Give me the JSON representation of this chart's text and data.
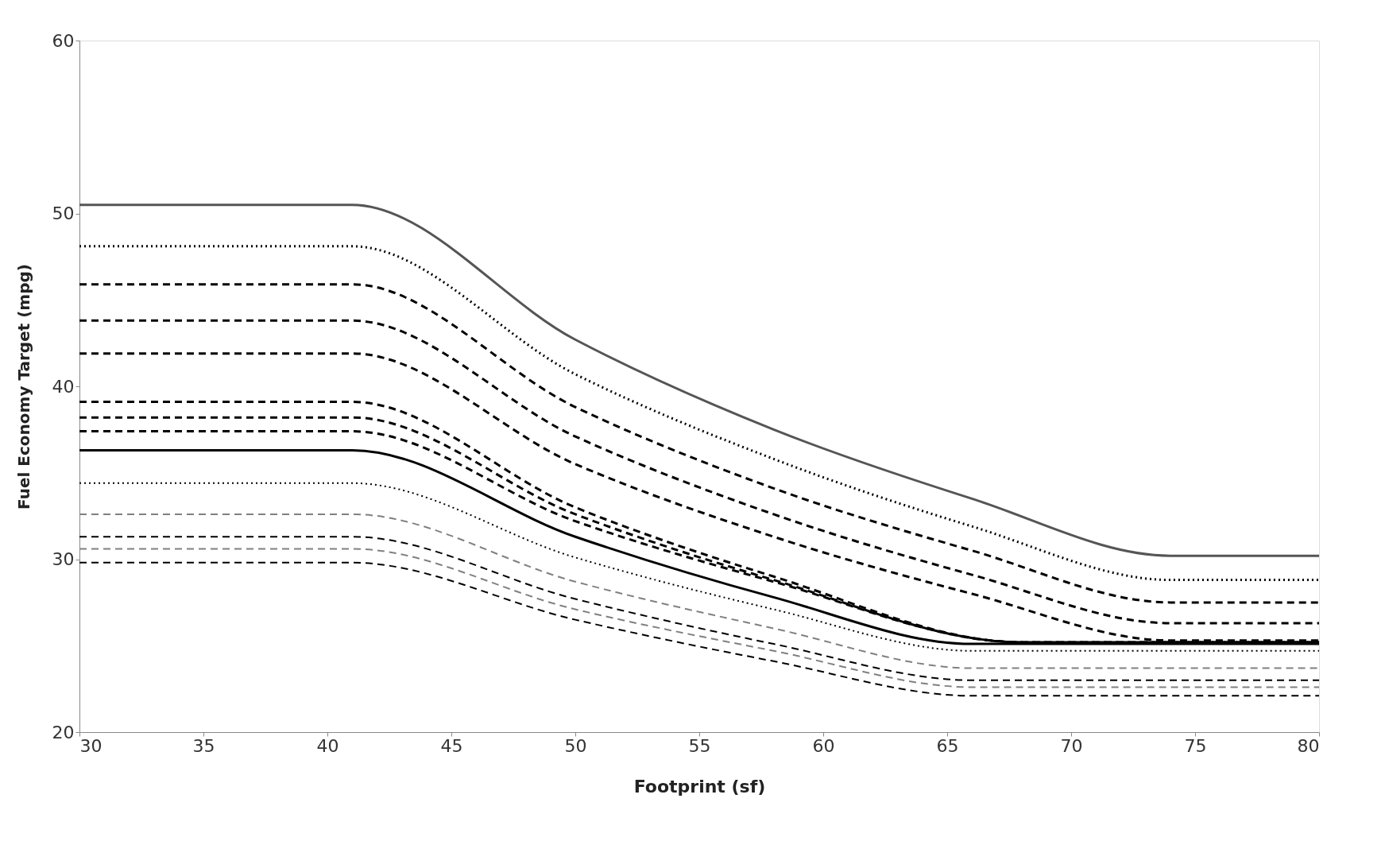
{
  "chart_data": {
    "type": "line",
    "xlabel": "Footprint (sf)",
    "ylabel": "Fuel Economy Target (mpg)",
    "xlim": [
      30,
      80
    ],
    "xticks": [
      30,
      35,
      40,
      45,
      50,
      55,
      60,
      65,
      70,
      75,
      80
    ],
    "ylim": [
      20,
      60
    ],
    "yticks": [
      20,
      30,
      40,
      50,
      60
    ],
    "grid": false,
    "marker": "none",
    "series": [
      {
        "color": "#555555",
        "line_style": "solid",
        "x": [
          30,
          41,
          50,
          58,
          66,
          74,
          80
        ],
        "values": [
          50.5,
          50.5,
          42.7,
          37.5,
          33.5,
          30.2,
          30.2
        ]
      },
      {
        "color": "#000000",
        "line_style": "dotted",
        "x": [
          30,
          41,
          50,
          58,
          66,
          74,
          80
        ],
        "values": [
          48.1,
          48.1,
          40.7,
          35.8,
          31.9,
          28.8,
          28.8
        ]
      },
      {
        "color": "#000000",
        "line_style": "dashed",
        "x": [
          30,
          41,
          50,
          58,
          66,
          74,
          80
        ],
        "values": [
          45.9,
          45.9,
          38.8,
          34.1,
          30.5,
          27.5,
          27.5
        ]
      },
      {
        "color": "#000000",
        "line_style": "dashed",
        "x": [
          30,
          41,
          50,
          58,
          66,
          74,
          80
        ],
        "values": [
          43.8,
          43.8,
          37.1,
          32.6,
          29.1,
          26.3,
          26.3
        ]
      },
      {
        "color": "#000000",
        "line_style": "dashed",
        "x": [
          30,
          41,
          50,
          58,
          66,
          74,
          80
        ],
        "values": [
          41.9,
          41.9,
          35.5,
          31.3,
          28.0,
          25.3,
          25.3
        ]
      },
      {
        "color": "#000000",
        "line_style": "dashed",
        "x": [
          30,
          41,
          50,
          58,
          68,
          80
        ],
        "values": [
          39.1,
          39.1,
          33.0,
          29.0,
          25.2,
          25.2
        ]
      },
      {
        "color": "#000000",
        "line_style": "dashed",
        "x": [
          30,
          41,
          50,
          58,
          68,
          80
        ],
        "values": [
          38.2,
          38.2,
          32.6,
          28.8,
          25.2,
          25.2
        ]
      },
      {
        "color": "#000000",
        "line_style": "dashed",
        "x": [
          30,
          41,
          50,
          58,
          68,
          80
        ],
        "values": [
          37.4,
          37.4,
          32.2,
          28.7,
          25.2,
          25.2
        ]
      },
      {
        "color": "#000000",
        "line_style": "solid",
        "x": [
          30,
          41,
          50,
          58,
          66,
          80
        ],
        "values": [
          36.3,
          36.3,
          31.3,
          27.8,
          25.1,
          25.1
        ]
      },
      {
        "color": "#000000",
        "line_style": "dotted",
        "x": [
          30,
          41,
          50,
          58,
          66,
          80
        ],
        "values": [
          34.4,
          34.4,
          30.1,
          27.1,
          24.7,
          24.7
        ]
      },
      {
        "color": "#808080",
        "line_style": "dashed",
        "x": [
          30,
          41,
          50,
          58,
          66,
          80
        ],
        "values": [
          32.6,
          32.6,
          28.7,
          26.0,
          23.7,
          23.7
        ]
      },
      {
        "color": "#000000",
        "line_style": "dashed",
        "x": [
          30,
          41,
          50,
          58,
          66,
          80
        ],
        "values": [
          31.3,
          31.3,
          27.7,
          25.1,
          23.0,
          23.0
        ]
      },
      {
        "color": "#808080",
        "line_style": "dashed",
        "x": [
          30,
          41,
          50,
          58,
          66,
          80
        ],
        "values": [
          30.6,
          30.6,
          27.1,
          24.7,
          22.6,
          22.6
        ]
      },
      {
        "color": "#000000",
        "line_style": "dashed",
        "x": [
          30,
          41,
          50,
          58,
          66,
          80
        ],
        "values": [
          29.8,
          29.8,
          26.5,
          24.1,
          22.1,
          22.1
        ]
      }
    ]
  }
}
